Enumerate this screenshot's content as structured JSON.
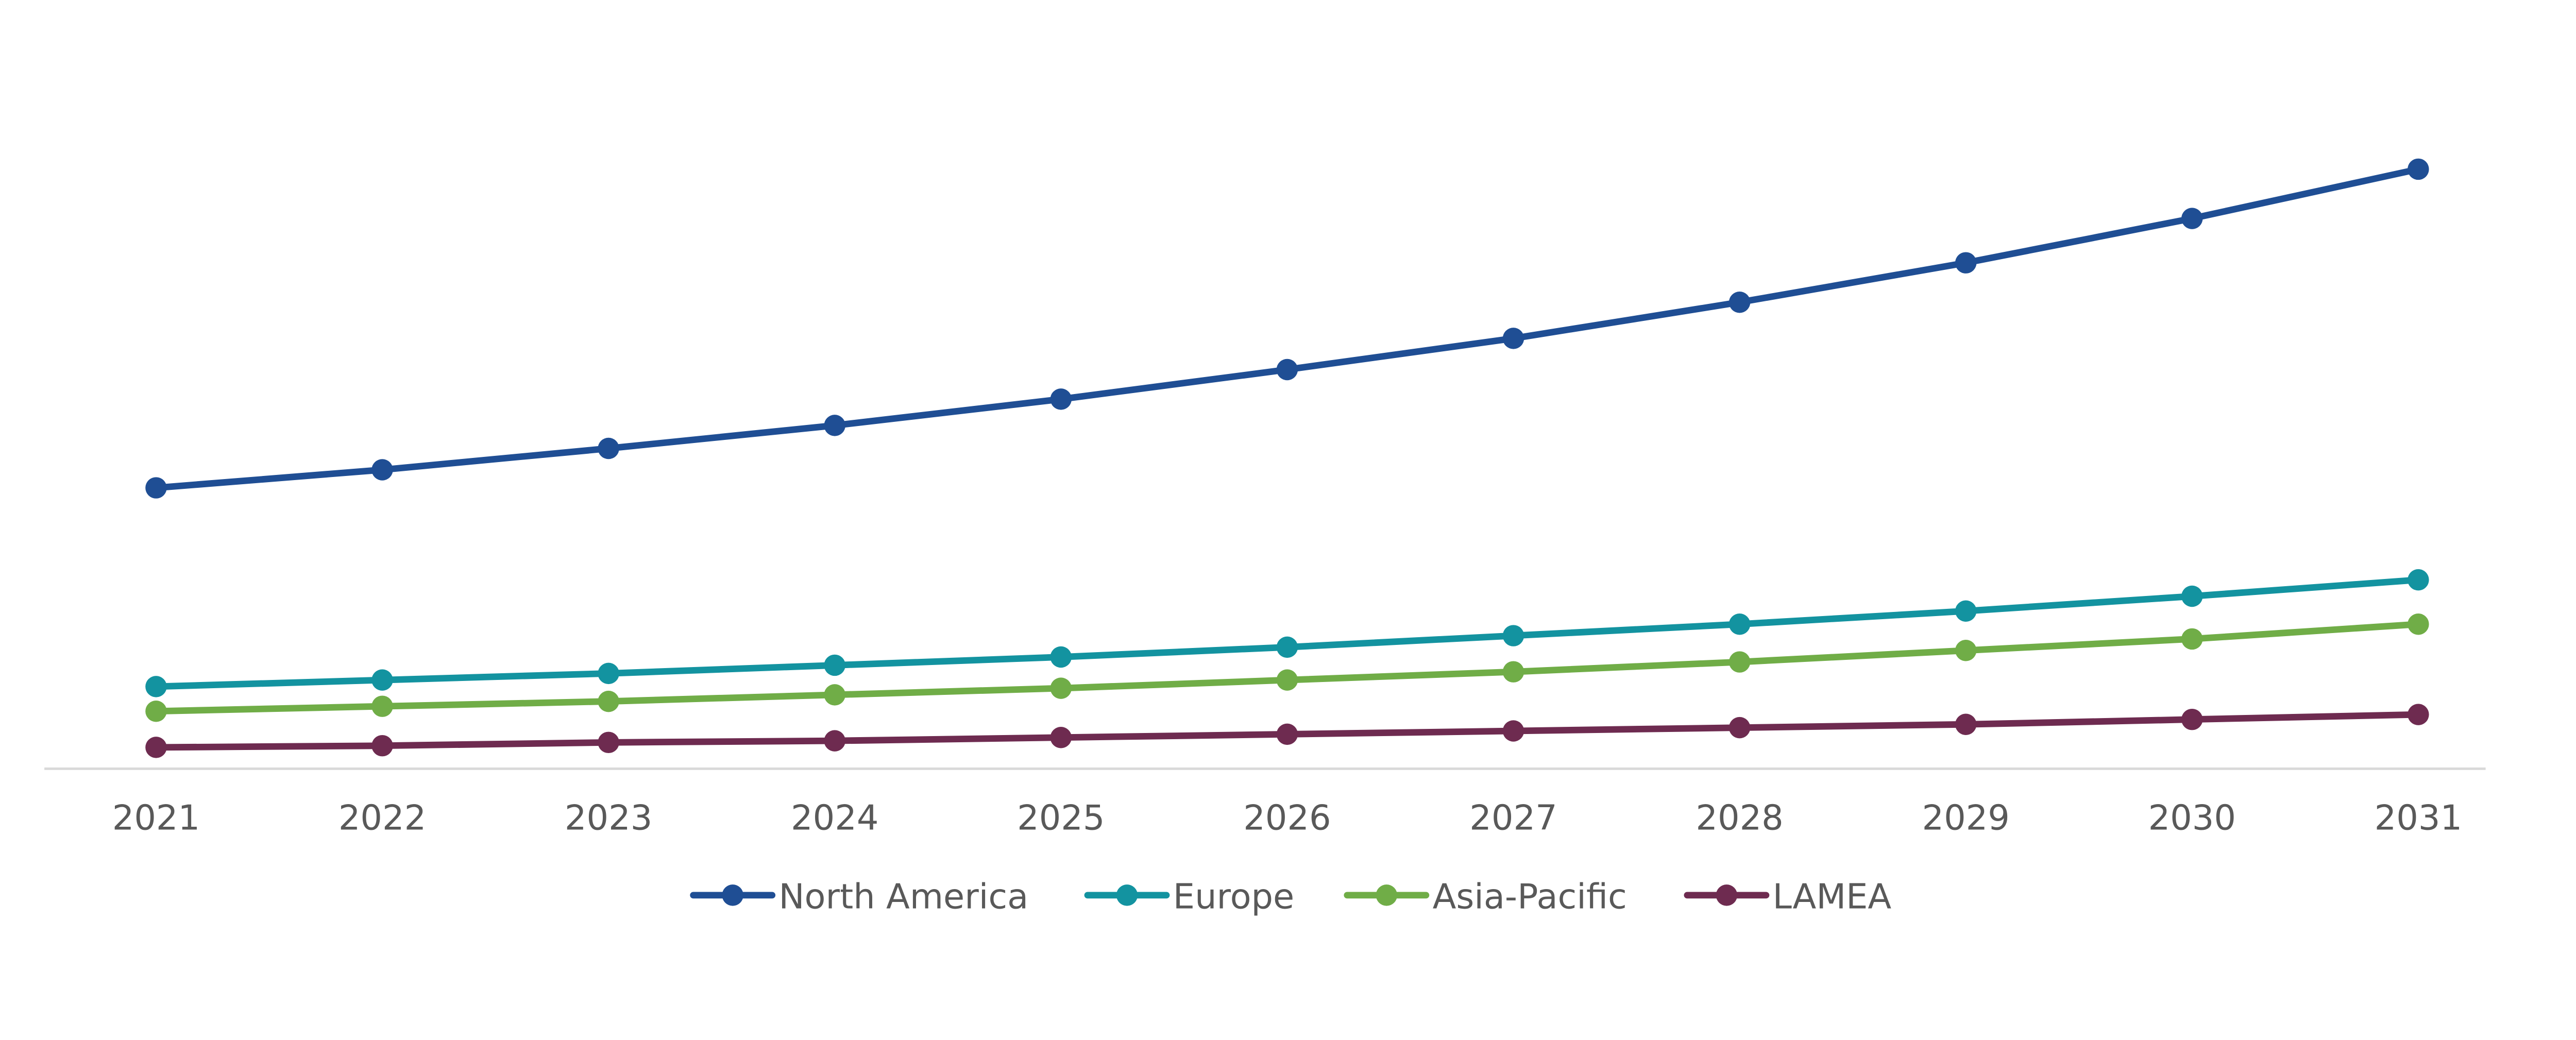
{
  "chart_data": {
    "type": "line",
    "title": "",
    "xlabel": "",
    "ylabel": "",
    "x": [
      "2021",
      "2022",
      "2023",
      "2024",
      "2025",
      "2026",
      "2027",
      "2028",
      "2029",
      "2030",
      "2031"
    ],
    "ylim": [
      0,
      468
    ],
    "y_axis_labels_shown": false,
    "grid": false,
    "legend_position": "bottom",
    "series": [
      {
        "name": "North America",
        "color": "#1F4E94",
        "values": [
          171,
          182,
          195,
          209,
          225,
          243,
          262,
          284,
          308,
          335,
          365
        ]
      },
      {
        "name": "Europe",
        "color": "#1393A0",
        "values": [
          50,
          54,
          58,
          63,
          68,
          74,
          81,
          88,
          96,
          105,
          115
        ]
      },
      {
        "name": "Asia-Pacific",
        "color": "#70AD47",
        "values": [
          35,
          38,
          41,
          45,
          49,
          54,
          59,
          65,
          72,
          79,
          88
        ]
      },
      {
        "name": "LAMEA",
        "color": "#6E2B50",
        "values": [
          13,
          14,
          16,
          17,
          19,
          21,
          23,
          25,
          27,
          30,
          33
        ]
      }
    ],
    "axis_color": "#D9D9D9",
    "text_color": "#595959"
  }
}
